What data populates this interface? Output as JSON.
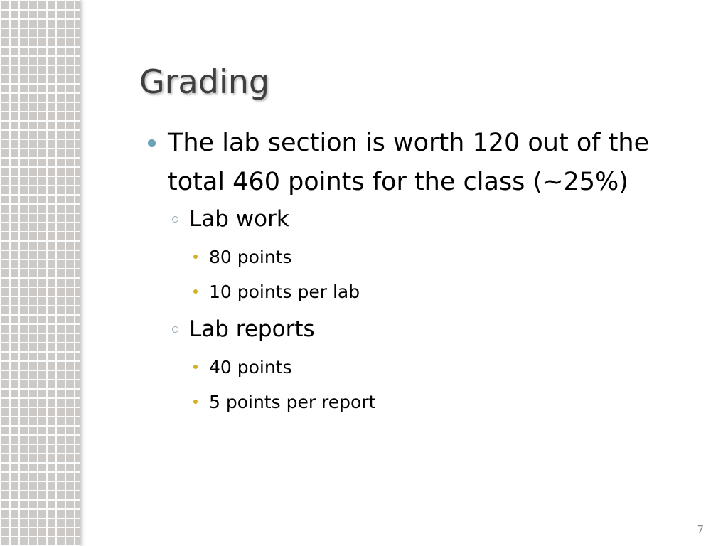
{
  "slide": {
    "title": "Grading",
    "bullets": [
      {
        "text": "The lab section is worth 120 out of the total 460 points for the class (~25%)",
        "children": [
          {
            "text": "Lab work",
            "children": [
              "80 points",
              "10 points per lab"
            ]
          },
          {
            "text": "Lab reports",
            "children": [
              "40 points",
              "5 points per report"
            ]
          }
        ]
      }
    ],
    "page_number": "7"
  },
  "colors": {
    "level1_bullet": "#6aa2b8",
    "level2_bullet": "#93a9b6",
    "level3_bullet": "#d1b021",
    "title": "#3f3f3f"
  }
}
